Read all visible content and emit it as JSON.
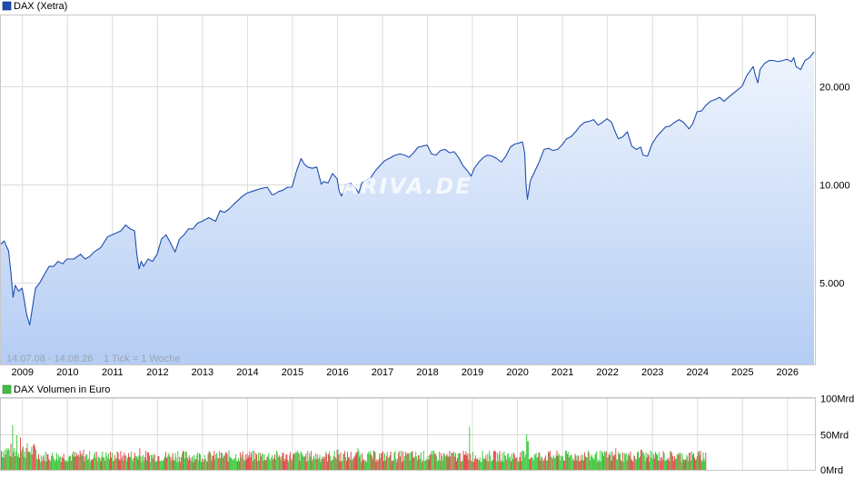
{
  "chart_data": [
    {
      "type": "area",
      "legend": "DAX (Xetra)",
      "color": "#1f4fae",
      "fill_top": "#eef4fd",
      "fill_bottom": "#b5cdf4",
      "legend_placement": "top-left",
      "grid": true,
      "y_scale": "log",
      "ylim": [
        2800,
        33000
      ],
      "y_ticks": [
        "20.000",
        "10.000",
        "5.000"
      ],
      "y_tick_values": [
        20000,
        10000,
        5000
      ],
      "x_ticks": [
        "2009",
        "2010",
        "2011",
        "2012",
        "2013",
        "2014",
        "2015",
        "2016",
        "2017",
        "2018",
        "2019",
        "2020",
        "2021",
        "2022",
        "2023",
        "2024",
        "2025",
        "2026"
      ],
      "x_tick_years": [
        2009,
        2010,
        2011,
        2012,
        2013,
        2014,
        2015,
        2016,
        2017,
        2018,
        2019,
        2020,
        2021,
        2022,
        2023,
        2024,
        2025,
        2026
      ],
      "date_range_label": "14.07.08 - 14.08.26",
      "tick_label": "1 Tick = 1 Woche",
      "watermark": "ARIVA.DE",
      "series": [
        {
          "x": [
            2008.53,
            2008.6,
            2008.7,
            2008.75,
            2008.8,
            2008.85,
            2008.92,
            2009.0,
            2009.05,
            2009.1,
            2009.17,
            2009.22,
            2009.3,
            2009.4,
            2009.5,
            2009.6,
            2009.7,
            2009.8,
            2009.9,
            2010.0,
            2010.15,
            2010.3,
            2010.4,
            2010.5,
            2010.6,
            2010.75,
            2010.9,
            2011.0,
            2011.1,
            2011.2,
            2011.3,
            2011.4,
            2011.5,
            2011.55,
            2011.6,
            2011.65,
            2011.7,
            2011.8,
            2011.9,
            2012.0,
            2012.1,
            2012.2,
            2012.3,
            2012.4,
            2012.5,
            2012.6,
            2012.7,
            2012.8,
            2012.9,
            2013.0,
            2013.15,
            2013.3,
            2013.4,
            2013.5,
            2013.6,
            2013.75,
            2013.9,
            2014.0,
            2014.1,
            2014.2,
            2014.3,
            2014.45,
            2014.55,
            2014.6,
            2014.7,
            2014.8,
            2014.9,
            2015.0,
            2015.1,
            2015.2,
            2015.28,
            2015.35,
            2015.45,
            2015.55,
            2015.65,
            2015.7,
            2015.8,
            2015.9,
            2016.0,
            2016.05,
            2016.1,
            2016.2,
            2016.3,
            2016.4,
            2016.48,
            2016.55,
            2016.65,
            2016.75,
            2016.85,
            2016.95,
            2017.05,
            2017.15,
            2017.3,
            2017.4,
            2017.5,
            2017.6,
            2017.7,
            2017.8,
            2017.9,
            2018.0,
            2018.05,
            2018.1,
            2018.2,
            2018.3,
            2018.4,
            2018.5,
            2018.6,
            2018.7,
            2018.8,
            2018.9,
            2018.98,
            2019.05,
            2019.15,
            2019.25,
            2019.35,
            2019.45,
            2019.55,
            2019.65,
            2019.75,
            2019.85,
            2019.95,
            2020.05,
            2020.12,
            2020.17,
            2020.2,
            2020.23,
            2020.3,
            2020.4,
            2020.5,
            2020.6,
            2020.7,
            2020.8,
            2020.9,
            2021.0,
            2021.1,
            2021.2,
            2021.3,
            2021.4,
            2021.5,
            2021.6,
            2021.7,
            2021.8,
            2021.9,
            2022.0,
            2022.1,
            2022.18,
            2022.25,
            2022.35,
            2022.45,
            2022.55,
            2022.65,
            2022.75,
            2022.8,
            2022.9,
            2023.0,
            2023.1,
            2023.2,
            2023.3,
            2023.4,
            2023.5,
            2023.6,
            2023.7,
            2023.82,
            2023.9,
            2024.0,
            2024.1,
            2024.2,
            2024.3,
            2024.4,
            2024.5,
            2024.6,
            2024.7,
            2024.8,
            2024.9,
            2025.0,
            2025.1,
            2025.2,
            2025.25,
            2025.3,
            2025.35,
            2025.4,
            2025.5,
            2025.6,
            2025.7,
            2025.8,
            2025.9,
            2026.0,
            2026.1,
            2026.15,
            2026.2,
            2026.3,
            2026.4,
            2026.5,
            2026.6
          ],
          "values": [
            6550,
            6700,
            6250,
            5400,
            4500,
            4900,
            4700,
            4800,
            4400,
            4000,
            3700,
            4100,
            4800,
            5000,
            5300,
            5600,
            5600,
            5800,
            5700,
            5900,
            5900,
            6100,
            5900,
            6000,
            6200,
            6400,
            6900,
            7000,
            7100,
            7200,
            7500,
            7300,
            7200,
            6100,
            5500,
            5800,
            5600,
            5900,
            5800,
            6100,
            6800,
            7000,
            6600,
            6200,
            6800,
            7000,
            7300,
            7300,
            7600,
            7700,
            7900,
            7700,
            8300,
            8200,
            8400,
            8800,
            9200,
            9400,
            9500,
            9600,
            9700,
            9800,
            9300,
            9300,
            9500,
            9600,
            9800,
            9800,
            11000,
            12000,
            11500,
            11300,
            11200,
            11300,
            10000,
            10200,
            10100,
            10800,
            10400,
            9500,
            9200,
            10000,
            10100,
            9800,
            9400,
            10100,
            10300,
            10500,
            11000,
            11400,
            11800,
            12000,
            12300,
            12400,
            12300,
            12100,
            12500,
            13000,
            13100,
            13200,
            12800,
            12400,
            12300,
            12700,
            12800,
            12500,
            12600,
            12100,
            11400,
            11000,
            10600,
            11200,
            11700,
            12100,
            12300,
            12200,
            12000,
            11700,
            12200,
            13000,
            13300,
            13400,
            13500,
            12500,
            10000,
            9000,
            10300,
            11000,
            11800,
            12800,
            12900,
            12700,
            12800,
            13200,
            13800,
            14000,
            14500,
            15100,
            15500,
            15600,
            15800,
            15200,
            15500,
            15900,
            15500,
            14500,
            13800,
            14000,
            14500,
            13100,
            12800,
            13000,
            12300,
            12200,
            13300,
            14000,
            14500,
            15000,
            15100,
            15500,
            15800,
            15500,
            14800,
            15300,
            16700,
            16800,
            17500,
            18000,
            18200,
            18500,
            18000,
            18500,
            19000,
            19500,
            20000,
            21500,
            22500,
            23000,
            21500,
            20500,
            22500,
            23500,
            24000,
            24000,
            23800,
            24000,
            24200,
            23800,
            24500,
            23000,
            22500,
            24000,
            24500,
            25500
          ]
        }
      ]
    },
    {
      "type": "bar",
      "legend": "DAX Volumen in Euro",
      "legend_swatch": "#44bb44",
      "up_color": "#44cc44",
      "down_color": "#e05050",
      "ylim": [
        0,
        100
      ],
      "y_ticks": [
        "100Mrd",
        "50Mrd",
        "0Mrd"
      ],
      "y_tick_values": [
        100,
        50,
        0
      ],
      "weekly_volume_baseline": 18,
      "peaks": [
        {
          "x": 2008.78,
          "value": 62
        },
        {
          "x": 2008.88,
          "value": 48
        },
        {
          "x": 2008.95,
          "value": 45
        },
        {
          "x": 2009.1,
          "value": 30
        },
        {
          "x": 2010.35,
          "value": 28
        },
        {
          "x": 2011.6,
          "value": 30
        },
        {
          "x": 2012.45,
          "value": 26
        },
        {
          "x": 2015.1,
          "value": 27
        },
        {
          "x": 2016.0,
          "value": 28
        },
        {
          "x": 2016.45,
          "value": 30
        },
        {
          "x": 2018.94,
          "value": 60
        },
        {
          "x": 2020.2,
          "value": 50
        },
        {
          "x": 2020.23,
          "value": 40
        },
        {
          "x": 2022.18,
          "value": 30
        },
        {
          "x": 2022.75,
          "value": 28
        },
        {
          "x": 2024.4,
          "value": 23
        }
      ],
      "last_x": 2024.2
    }
  ]
}
